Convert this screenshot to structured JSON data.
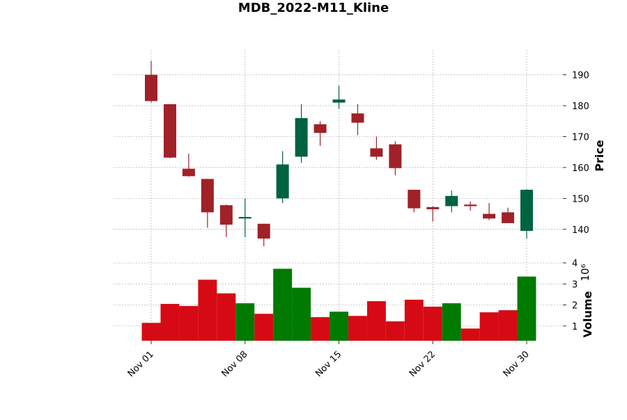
{
  "chart_data": {
    "type": "candlestick",
    "title": "MDB_2022-M11_Kline",
    "price_panel": {
      "ylabel": "Price",
      "ylim": [
        130.5,
        198
      ],
      "yticks": [
        140,
        150,
        160,
        170,
        180,
        190
      ]
    },
    "volume_panel": {
      "ylabel": "Volume",
      "multiplier_label": "10⁶",
      "unit_multiplier": 1000000,
      "ylim": [
        0.3,
        4.2
      ],
      "yticks": [
        1,
        2,
        3,
        4
      ]
    },
    "x_tick_labels": [
      {
        "index": 0,
        "label": "Nov 01"
      },
      {
        "index": 5,
        "label": "Nov 08"
      },
      {
        "index": 10,
        "label": "Nov 15"
      },
      {
        "index": 15,
        "label": "Nov 22"
      },
      {
        "index": 20,
        "label": "Nov 30"
      }
    ],
    "candles": [
      {
        "date": "2022-11-01",
        "open": 190.0,
        "high": 194.5,
        "low": 181.0,
        "close": 181.5,
        "volume": 1.15
      },
      {
        "date": "2022-11-02",
        "open": 180.5,
        "high": 180.5,
        "low": 163.0,
        "close": 163.2,
        "volume": 2.05
      },
      {
        "date": "2022-11-03",
        "open": 159.6,
        "high": 164.5,
        "low": 157.0,
        "close": 157.2,
        "volume": 1.95
      },
      {
        "date": "2022-11-04",
        "open": 156.3,
        "high": 156.3,
        "low": 140.5,
        "close": 145.5,
        "volume": 3.2
      },
      {
        "date": "2022-11-07",
        "open": 147.8,
        "high": 148.0,
        "low": 137.5,
        "close": 141.5,
        "volume": 2.55
      },
      {
        "date": "2022-11-08",
        "open": 143.5,
        "high": 150.0,
        "low": 137.5,
        "close": 144.0,
        "volume": 2.08
      },
      {
        "date": "2022-11-09",
        "open": 141.8,
        "high": 141.8,
        "low": 134.5,
        "close": 137.0,
        "volume": 1.58
      },
      {
        "date": "2022-11-10",
        "open": 150.0,
        "high": 165.3,
        "low": 148.5,
        "close": 161.0,
        "volume": 3.72
      },
      {
        "date": "2022-11-11",
        "open": 163.5,
        "high": 180.5,
        "low": 161.5,
        "close": 176.0,
        "volume": 2.82
      },
      {
        "date": "2022-11-14",
        "open": 174.0,
        "high": 175.0,
        "low": 167.0,
        "close": 171.2,
        "volume": 1.42
      },
      {
        "date": "2022-11-15",
        "open": 181.0,
        "high": 186.5,
        "low": 179.0,
        "close": 182.0,
        "volume": 1.68
      },
      {
        "date": "2022-11-16",
        "open": 177.5,
        "high": 180.5,
        "low": 170.5,
        "close": 174.5,
        "volume": 1.48
      },
      {
        "date": "2022-11-17",
        "open": 166.2,
        "high": 170.0,
        "low": 162.5,
        "close": 163.5,
        "volume": 2.18
      },
      {
        "date": "2022-11-18",
        "open": 167.5,
        "high": 168.5,
        "low": 157.5,
        "close": 159.8,
        "volume": 1.22
      },
      {
        "date": "2022-11-21",
        "open": 152.8,
        "high": 152.8,
        "low": 145.5,
        "close": 146.8,
        "volume": 2.25
      },
      {
        "date": "2022-11-22",
        "open": 147.2,
        "high": 147.5,
        "low": 142.5,
        "close": 146.5,
        "volume": 1.92
      },
      {
        "date": "2022-11-23",
        "open": 147.5,
        "high": 152.5,
        "low": 145.5,
        "close": 150.8,
        "volume": 2.08
      },
      {
        "date": "2022-11-25",
        "open": 148.0,
        "high": 149.0,
        "low": 146.0,
        "close": 147.5,
        "volume": 0.88
      },
      {
        "date": "2022-11-28",
        "open": 145.0,
        "high": 148.5,
        "low": 143.0,
        "close": 143.5,
        "volume": 1.65
      },
      {
        "date": "2022-11-29",
        "open": 145.5,
        "high": 147.0,
        "low": 142.0,
        "close": 142.0,
        "volume": 1.75
      },
      {
        "date": "2022-11-30",
        "open": 139.5,
        "high": 153.0,
        "low": 137.0,
        "close": 152.8,
        "volume": 3.35
      }
    ],
    "colors": {
      "up_candle": "#006340",
      "down_candle": "#a02128",
      "up_volume": "#007a00",
      "down_volume": "#d60a14"
    },
    "grid": true
  }
}
